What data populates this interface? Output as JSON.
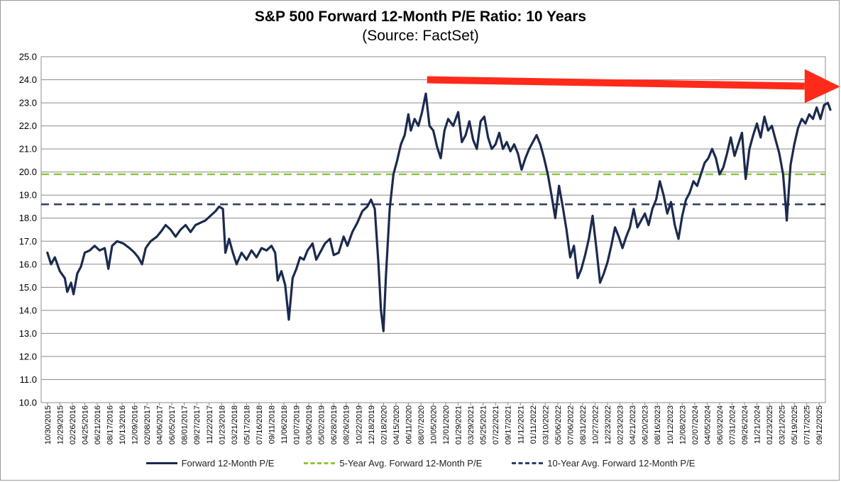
{
  "chart_data": {
    "type": "line",
    "title": "S&P 500 Forward 12-Month P/E Ratio: 10 Years",
    "subtitle": "(Source: FactSet)",
    "ylim": [
      10.0,
      25.0
    ],
    "y_ticks": [
      "10.0",
      "11.0",
      "12.0",
      "13.0",
      "14.0",
      "15.0",
      "16.0",
      "17.0",
      "18.0",
      "19.0",
      "20.0",
      "21.0",
      "22.0",
      "23.0",
      "24.0",
      "25.0"
    ],
    "x_tick_labels": [
      "10/30/2015",
      "12/29/2015",
      "02/26/2016",
      "04/25/2016",
      "06/21/2016",
      "08/17/2016",
      "10/13/2016",
      "12/09/2016",
      "02/08/2017",
      "04/06/2017",
      "06/05/2017",
      "08/01/2017",
      "09/27/2017",
      "11/22/2017",
      "01/23/2018",
      "03/21/2018",
      "05/17/2018",
      "07/16/2018",
      "09/11/2018",
      "11/06/2018",
      "01/07/2019",
      "03/06/2019",
      "05/02/2019",
      "06/28/2019",
      "08/26/2019",
      "10/22/2019",
      "12/18/2019",
      "02/18/2020",
      "04/15/2020",
      "06/11/2020",
      "08/07/2020",
      "10/05/2020",
      "12/01/2020",
      "01/29/2021",
      "03/29/2021",
      "05/25/2021",
      "07/22/2021",
      "09/17/2021",
      "11/12/2021",
      "01/11/2022",
      "03/10/2022",
      "05/06/2022",
      "07/06/2022",
      "08/31/2022",
      "10/27/2022",
      "12/23/2022",
      "02/23/2023",
      "04/21/2023",
      "06/20/2023",
      "08/16/2023",
      "10/12/2023",
      "12/08/2023",
      "02/07/2024",
      "04/05/2024",
      "06/03/2024",
      "07/31/2024",
      "09/26/2024",
      "11/21/2024",
      "01/23/2025",
      "03/21/2025",
      "05/19/2025",
      "07/17/2025",
      "09/12/2025"
    ],
    "series": [
      {
        "name": "Forward 12-Month P/E",
        "color": "#1b2a4e",
        "style": "solid",
        "points": [
          [
            0,
            16.5
          ],
          [
            0.3,
            16.0
          ],
          [
            0.6,
            16.3
          ],
          [
            1.0,
            15.7
          ],
          [
            1.4,
            15.4
          ],
          [
            1.6,
            14.8
          ],
          [
            1.9,
            15.2
          ],
          [
            2.1,
            14.7
          ],
          [
            2.4,
            15.6
          ],
          [
            2.7,
            15.9
          ],
          [
            3.0,
            16.5
          ],
          [
            3.4,
            16.6
          ],
          [
            3.8,
            16.8
          ],
          [
            4.2,
            16.6
          ],
          [
            4.6,
            16.7
          ],
          [
            4.9,
            15.8
          ],
          [
            5.2,
            16.8
          ],
          [
            5.6,
            17.0
          ],
          [
            6.1,
            16.9
          ],
          [
            6.6,
            16.7
          ],
          [
            7.0,
            16.5
          ],
          [
            7.3,
            16.3
          ],
          [
            7.6,
            16.0
          ],
          [
            7.9,
            16.7
          ],
          [
            8.3,
            17.0
          ],
          [
            8.8,
            17.2
          ],
          [
            9.1,
            17.4
          ],
          [
            9.5,
            17.7
          ],
          [
            9.9,
            17.5
          ],
          [
            10.3,
            17.2
          ],
          [
            10.7,
            17.5
          ],
          [
            11.1,
            17.7
          ],
          [
            11.5,
            17.4
          ],
          [
            11.9,
            17.7
          ],
          [
            12.3,
            17.8
          ],
          [
            12.7,
            17.9
          ],
          [
            13.1,
            18.1
          ],
          [
            13.5,
            18.3
          ],
          [
            13.8,
            18.5
          ],
          [
            14.1,
            18.4
          ],
          [
            14.3,
            16.5
          ],
          [
            14.6,
            17.1
          ],
          [
            14.9,
            16.5
          ],
          [
            15.2,
            16.0
          ],
          [
            15.6,
            16.5
          ],
          [
            16.0,
            16.2
          ],
          [
            16.4,
            16.6
          ],
          [
            16.8,
            16.3
          ],
          [
            17.2,
            16.7
          ],
          [
            17.6,
            16.6
          ],
          [
            18.0,
            16.8
          ],
          [
            18.3,
            16.5
          ],
          [
            18.5,
            15.3
          ],
          [
            18.8,
            15.7
          ],
          [
            19.1,
            15.1
          ],
          [
            19.4,
            13.6
          ],
          [
            19.7,
            15.4
          ],
          [
            20.0,
            15.8
          ],
          [
            20.3,
            16.3
          ],
          [
            20.6,
            16.2
          ],
          [
            20.9,
            16.6
          ],
          [
            21.3,
            16.9
          ],
          [
            21.6,
            16.2
          ],
          [
            21.9,
            16.5
          ],
          [
            22.3,
            16.9
          ],
          [
            22.7,
            17.1
          ],
          [
            23.0,
            16.4
          ],
          [
            23.4,
            16.5
          ],
          [
            23.8,
            17.2
          ],
          [
            24.1,
            16.8
          ],
          [
            24.5,
            17.4
          ],
          [
            24.9,
            17.8
          ],
          [
            25.3,
            18.3
          ],
          [
            25.7,
            18.5
          ],
          [
            26.0,
            18.8
          ],
          [
            26.3,
            18.4
          ],
          [
            26.6,
            16.0
          ],
          [
            26.8,
            14.0
          ],
          [
            27.0,
            13.1
          ],
          [
            27.2,
            15.5
          ],
          [
            27.5,
            18.4
          ],
          [
            27.8,
            19.9
          ],
          [
            28.1,
            20.5
          ],
          [
            28.4,
            21.2
          ],
          [
            28.7,
            21.6
          ],
          [
            29.0,
            22.5
          ],
          [
            29.2,
            21.8
          ],
          [
            29.5,
            22.3
          ],
          [
            29.8,
            22.0
          ],
          [
            30.1,
            22.6
          ],
          [
            30.4,
            23.4
          ],
          [
            30.7,
            22.0
          ],
          [
            31.0,
            21.8
          ],
          [
            31.3,
            21.1
          ],
          [
            31.6,
            20.6
          ],
          [
            31.9,
            21.8
          ],
          [
            32.2,
            22.3
          ],
          [
            32.6,
            22.0
          ],
          [
            33.0,
            22.6
          ],
          [
            33.3,
            21.3
          ],
          [
            33.6,
            21.6
          ],
          [
            33.9,
            22.2
          ],
          [
            34.2,
            21.4
          ],
          [
            34.5,
            21.0
          ],
          [
            34.8,
            22.2
          ],
          [
            35.1,
            22.4
          ],
          [
            35.4,
            21.5
          ],
          [
            35.7,
            21.0
          ],
          [
            36.0,
            21.2
          ],
          [
            36.3,
            21.7
          ],
          [
            36.6,
            21.0
          ],
          [
            36.9,
            21.3
          ],
          [
            37.2,
            20.9
          ],
          [
            37.5,
            21.2
          ],
          [
            37.8,
            20.8
          ],
          [
            38.1,
            20.1
          ],
          [
            38.4,
            20.6
          ],
          [
            38.7,
            21.0
          ],
          [
            39.0,
            21.3
          ],
          [
            39.3,
            21.6
          ],
          [
            39.6,
            21.2
          ],
          [
            39.9,
            20.6
          ],
          [
            40.2,
            19.9
          ],
          [
            40.5,
            19.0
          ],
          [
            40.8,
            18.0
          ],
          [
            41.1,
            19.4
          ],
          [
            41.4,
            18.5
          ],
          [
            41.7,
            17.5
          ],
          [
            42.0,
            16.3
          ],
          [
            42.3,
            16.8
          ],
          [
            42.6,
            15.4
          ],
          [
            42.9,
            15.8
          ],
          [
            43.2,
            16.4
          ],
          [
            43.5,
            17.1
          ],
          [
            43.8,
            18.1
          ],
          [
            44.1,
            16.7
          ],
          [
            44.4,
            15.2
          ],
          [
            44.7,
            15.6
          ],
          [
            45.0,
            16.1
          ],
          [
            45.3,
            16.8
          ],
          [
            45.6,
            17.6
          ],
          [
            45.9,
            17.2
          ],
          [
            46.2,
            16.7
          ],
          [
            46.5,
            17.2
          ],
          [
            46.8,
            17.6
          ],
          [
            47.1,
            18.4
          ],
          [
            47.4,
            17.6
          ],
          [
            47.7,
            17.9
          ],
          [
            48.0,
            18.2
          ],
          [
            48.3,
            17.7
          ],
          [
            48.6,
            18.4
          ],
          [
            48.9,
            18.8
          ],
          [
            49.2,
            19.6
          ],
          [
            49.5,
            19.0
          ],
          [
            49.8,
            18.2
          ],
          [
            50.1,
            18.7
          ],
          [
            50.4,
            17.7
          ],
          [
            50.7,
            17.1
          ],
          [
            51.0,
            18.1
          ],
          [
            51.3,
            18.8
          ],
          [
            51.6,
            19.1
          ],
          [
            51.9,
            19.6
          ],
          [
            52.2,
            19.4
          ],
          [
            52.5,
            19.9
          ],
          [
            52.8,
            20.4
          ],
          [
            53.1,
            20.6
          ],
          [
            53.4,
            21.0
          ],
          [
            53.7,
            20.6
          ],
          [
            54.0,
            19.9
          ],
          [
            54.3,
            20.2
          ],
          [
            54.6,
            20.8
          ],
          [
            54.9,
            21.5
          ],
          [
            55.2,
            20.7
          ],
          [
            55.5,
            21.2
          ],
          [
            55.8,
            21.7
          ],
          [
            56.1,
            19.7
          ],
          [
            56.4,
            21.0
          ],
          [
            56.7,
            21.6
          ],
          [
            57.0,
            22.1
          ],
          [
            57.3,
            21.5
          ],
          [
            57.6,
            22.4
          ],
          [
            57.9,
            21.8
          ],
          [
            58.2,
            22.0
          ],
          [
            58.5,
            21.4
          ],
          [
            58.8,
            20.8
          ],
          [
            59.1,
            19.9
          ],
          [
            59.3,
            18.6
          ],
          [
            59.4,
            17.9
          ],
          [
            59.7,
            20.3
          ],
          [
            60.0,
            21.2
          ],
          [
            60.3,
            21.9
          ],
          [
            60.6,
            22.3
          ],
          [
            60.9,
            22.1
          ],
          [
            61.2,
            22.5
          ],
          [
            61.5,
            22.3
          ],
          [
            61.8,
            22.8
          ],
          [
            62.1,
            22.3
          ],
          [
            62.4,
            22.9
          ],
          [
            62.7,
            23.0
          ],
          [
            62.9,
            22.7
          ]
        ]
      },
      {
        "name": "5-Year Avg. Forward 12-Month P/E",
        "color": "#8fc640",
        "style": "dashed",
        "value": 19.9
      },
      {
        "name": "10-Year Avg. Forward 12-Month P/E",
        "color": "#2f3f62",
        "style": "dashed",
        "value": 18.6
      }
    ],
    "annotations": [
      {
        "type": "arrow",
        "color": "#ff2a1a",
        "from": [
          30.5,
          24.0
        ],
        "to": [
          63.0,
          23.7
        ]
      }
    ],
    "legend_position": "bottom",
    "grid": true
  },
  "legend": {
    "items": [
      {
        "label": "Forward 12-Month P/E",
        "color": "#1b2a4e",
        "style": "solid"
      },
      {
        "label": "5-Year Avg. Forward 12-Month P/E",
        "color": "#8fc640",
        "style": "dashed"
      },
      {
        "label": "10-Year Avg. Forward 12-Month P/E",
        "color": "#2f3f62",
        "style": "dashed"
      }
    ]
  }
}
